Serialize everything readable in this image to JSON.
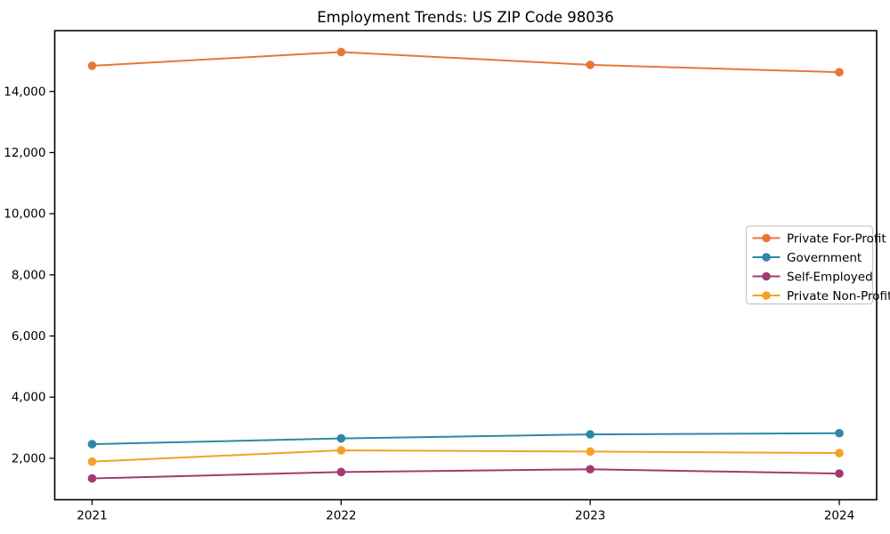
{
  "title": "Employment Trends: US ZIP Code 98036",
  "chart_data": {
    "type": "line",
    "title": "Employment Trends: US ZIP Code 98036",
    "xlabel": "",
    "ylabel": "",
    "grid": false,
    "x": [
      2021,
      2022,
      2023,
      2024
    ],
    "x_tick_labels": [
      "2021",
      "2022",
      "2023",
      "2024"
    ],
    "yticks": [
      2000,
      4000,
      6000,
      8000,
      10000,
      12000,
      14000
    ],
    "ytick_labels": [
      "2,000",
      "4,000",
      "6,000",
      "8,000",
      "10,000",
      "12,000",
      "14,000"
    ],
    "xlim": [
      2020.85,
      2024.15
    ],
    "ylim": [
      643,
      15988
    ],
    "series": [
      {
        "name": "Private For-Profit",
        "color": "#E8763B",
        "values": [
          14840,
          15290,
          14870,
          14630
        ]
      },
      {
        "name": "Government",
        "color": "#2E86AB",
        "values": [
          2460,
          2650,
          2780,
          2820
        ]
      },
      {
        "name": "Self-Employed",
        "color": "#A23B72",
        "values": [
          1340,
          1550,
          1640,
          1500
        ]
      },
      {
        "name": "Private Non-Profit",
        "color": "#F4A127",
        "values": [
          1890,
          2260,
          2220,
          2170
        ]
      }
    ],
    "legend": {
      "position": "right-center",
      "entries": [
        "Private For-Profit",
        "Government",
        "Self-Employed",
        "Private Non-Profit"
      ]
    }
  },
  "colors": {
    "background": "#ffffff",
    "axis": "#000000",
    "text": "#000000",
    "legend_border": "#c9c9c9",
    "legend_background": "#ffffff"
  }
}
